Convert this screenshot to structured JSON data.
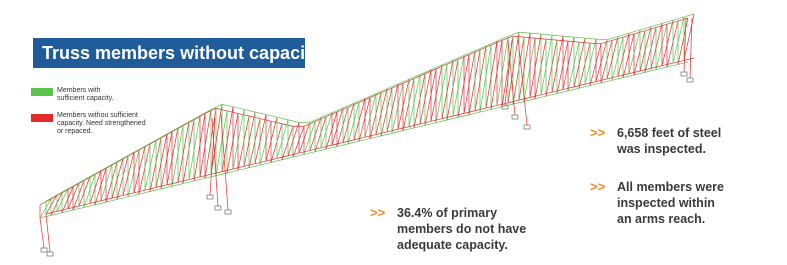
{
  "header": {
    "title": "Truss members without capacity:"
  },
  "legend": {
    "items": [
      {
        "lines": [
          "Members with",
          "sufficient capacity."
        ]
      },
      {
        "lines": [
          "Members withou sufficient",
          "capacity. Need strengthened",
          "or repaced."
        ]
      }
    ]
  },
  "callouts": [
    {
      "marker": ">>",
      "lines": [
        "36.4% of primary",
        "members do not have",
        "adequate capacity."
      ]
    },
    {
      "marker": ">>",
      "lines": [
        "6,658 feet of steel",
        "was inspected."
      ]
    },
    {
      "marker": ">>",
      "lines": [
        "All members were",
        "inspected within",
        "an arms reach."
      ]
    }
  ]
}
